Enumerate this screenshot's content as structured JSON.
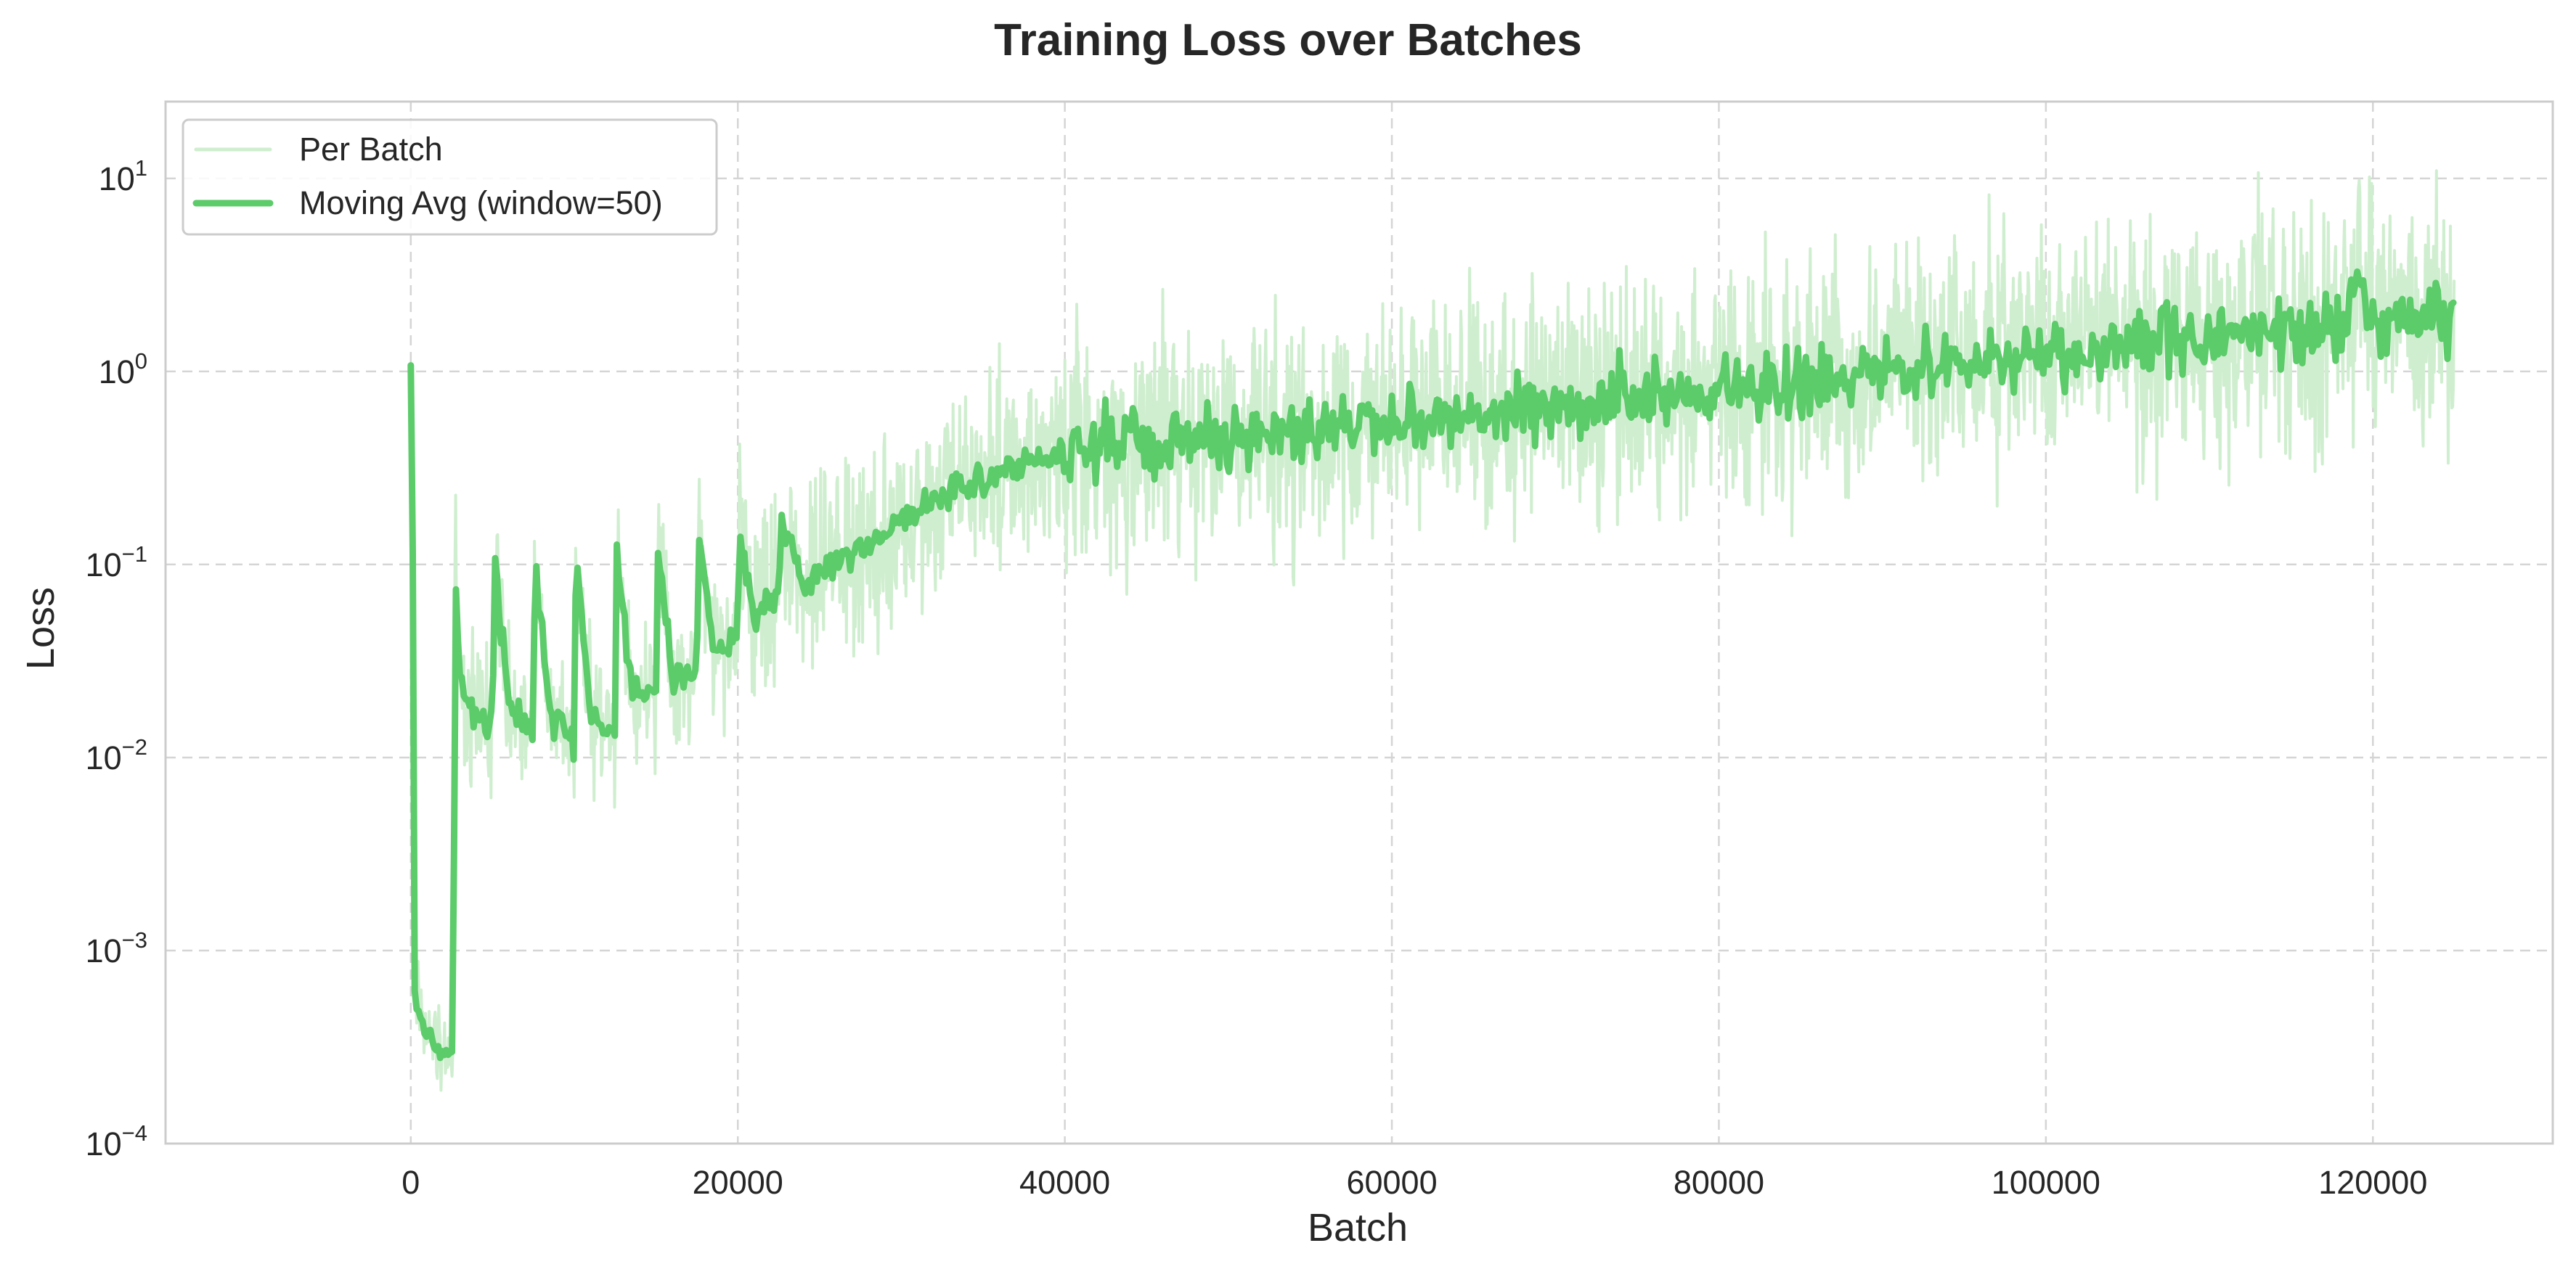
{
  "chart_data": {
    "type": "line",
    "title": "Training Loss over Batches",
    "xlabel": "Batch",
    "ylabel": "Loss",
    "xlim": [
      -15000,
      131000
    ],
    "ylim": [
      0.0001,
      25
    ],
    "yscale": "log",
    "grid": true,
    "grid_style": "dashed",
    "legend_position": "top-left",
    "x_ticks": [
      0,
      20000,
      40000,
      60000,
      80000,
      100000,
      120000
    ],
    "x_tick_labels": [
      "0",
      "20000",
      "40000",
      "60000",
      "80000",
      "100000",
      "120000"
    ],
    "y_ticks": [
      0.0001,
      0.001,
      0.01,
      0.1,
      1,
      10
    ],
    "y_tick_labels": [
      {
        "base": "10",
        "exp": "−4"
      },
      {
        "base": "10",
        "exp": "−3"
      },
      {
        "base": "10",
        "exp": "−2"
      },
      {
        "base": "10",
        "exp": "−1"
      },
      {
        "base": "10",
        "exp": "0"
      },
      {
        "base": "10",
        "exp": "1"
      }
    ],
    "colors": {
      "per_batch": "#cfeecf",
      "moving_avg": "#5ccb6a",
      "grid": "#d5d5d5",
      "frame": "#cccccc",
      "text": "#262626"
    },
    "series": [
      {
        "name": "Per Batch",
        "style": "thin-light",
        "x": [
          0,
          100,
          200,
          400,
          800,
          1200,
          1600,
          2000,
          2400,
          2600,
          2700,
          3000,
          3500,
          4000,
          4500,
          5000,
          5100,
          6000,
          7000,
          7500,
          7600,
          8500,
          9500,
          10000,
          10100,
          11000,
          12000,
          12500,
          12600,
          13500,
          14500,
          15000,
          15100,
          16000,
          17000,
          17500,
          17600,
          18500,
          19500,
          20000,
          20100,
          21000,
          22000,
          22500,
          22600,
          24000,
          26000,
          28000,
          30000,
          32000,
          34000,
          36000,
          38000,
          40000,
          42000,
          44000,
          46000,
          48000,
          50000,
          52000,
          54000,
          56000,
          58000,
          60000,
          62000,
          64000,
          66000,
          68000,
          70000,
          72000,
          74000,
          76000,
          78000,
          80000,
          82000,
          84000,
          86000,
          88000,
          90000,
          92000,
          94000,
          96000,
          98000,
          100000,
          102000,
          104000,
          106000,
          108000,
          110000,
          112000,
          114000,
          116000,
          118000,
          119000,
          120000,
          122000,
          124000,
          125000
        ],
        "y": [
          1.1,
          0.4,
          0.0007,
          0.0005,
          0.0004,
          0.00035,
          0.0003,
          0.00029,
          0.00028,
          0.00028,
          0.11,
          0.024,
          0.019,
          0.016,
          0.015,
          0.014,
          0.11,
          0.018,
          0.015,
          0.014,
          0.11,
          0.016,
          0.014,
          0.012,
          0.11,
          0.017,
          0.014,
          0.013,
          0.12,
          0.022,
          0.022,
          0.022,
          0.13,
          0.026,
          0.027,
          0.028,
          0.14,
          0.035,
          0.038,
          0.04,
          0.15,
          0.055,
          0.062,
          0.07,
          0.17,
          0.085,
          0.1,
          0.13,
          0.17,
          0.22,
          0.26,
          0.3,
          0.35,
          0.38,
          0.4,
          0.38,
          0.42,
          0.44,
          0.46,
          0.48,
          0.5,
          0.48,
          0.52,
          0.55,
          0.58,
          0.6,
          0.58,
          0.62,
          0.66,
          0.7,
          0.72,
          0.75,
          0.78,
          0.8,
          0.85,
          0.88,
          0.9,
          0.95,
          1.0,
          1.05,
          1.1,
          1.15,
          1.2,
          1.25,
          1.3,
          1.35,
          1.4,
          1.45,
          1.5,
          1.55,
          1.6,
          1.65,
          1.7,
          3.0,
          1.7,
          1.8,
          1.85,
          1.9
        ]
      },
      {
        "name": "Moving Avg (window=50)",
        "style": "thick",
        "x": [
          0,
          100,
          200,
          400,
          800,
          1200,
          1600,
          2000,
          2400,
          2600,
          2700,
          3000,
          3500,
          4000,
          4500,
          5000,
          5100,
          6000,
          7000,
          7500,
          7600,
          8500,
          9500,
          10000,
          10100,
          11000,
          12000,
          12500,
          12600,
          13500,
          14500,
          15000,
          15100,
          16000,
          17000,
          17500,
          17600,
          18500,
          19500,
          20000,
          20100,
          21000,
          22000,
          22500,
          22600,
          24000,
          26000,
          28000,
          30000,
          32000,
          34000,
          36000,
          38000,
          40000,
          42000,
          44000,
          46000,
          48000,
          50000,
          52000,
          54000,
          56000,
          58000,
          60000,
          62000,
          64000,
          66000,
          68000,
          70000,
          72000,
          74000,
          76000,
          78000,
          80000,
          82000,
          84000,
          86000,
          88000,
          90000,
          92000,
          94000,
          96000,
          98000,
          100000,
          102000,
          104000,
          106000,
          108000,
          110000,
          112000,
          114000,
          116000,
          118000,
          119000,
          120000,
          122000,
          124000,
          125000
        ],
        "y": [
          1.1,
          0.4,
          0.0007,
          0.0005,
          0.0004,
          0.00035,
          0.0003,
          0.00029,
          0.00028,
          0.00028,
          0.11,
          0.024,
          0.019,
          0.016,
          0.015,
          0.014,
          0.11,
          0.018,
          0.015,
          0.014,
          0.11,
          0.016,
          0.014,
          0.012,
          0.11,
          0.017,
          0.014,
          0.013,
          0.12,
          0.022,
          0.022,
          0.022,
          0.13,
          0.026,
          0.027,
          0.028,
          0.14,
          0.035,
          0.038,
          0.04,
          0.15,
          0.055,
          0.062,
          0.07,
          0.17,
          0.085,
          0.1,
          0.13,
          0.17,
          0.22,
          0.26,
          0.3,
          0.35,
          0.38,
          0.4,
          0.38,
          0.42,
          0.44,
          0.46,
          0.48,
          0.5,
          0.48,
          0.52,
          0.55,
          0.58,
          0.6,
          0.58,
          0.62,
          0.66,
          0.7,
          0.72,
          0.75,
          0.78,
          0.8,
          0.85,
          0.88,
          0.9,
          0.95,
          1.0,
          1.05,
          1.1,
          1.15,
          1.2,
          1.25,
          1.3,
          1.35,
          1.4,
          1.45,
          1.5,
          1.55,
          1.6,
          1.65,
          1.7,
          3.0,
          1.7,
          1.8,
          1.85,
          1.9
        ]
      }
    ]
  }
}
